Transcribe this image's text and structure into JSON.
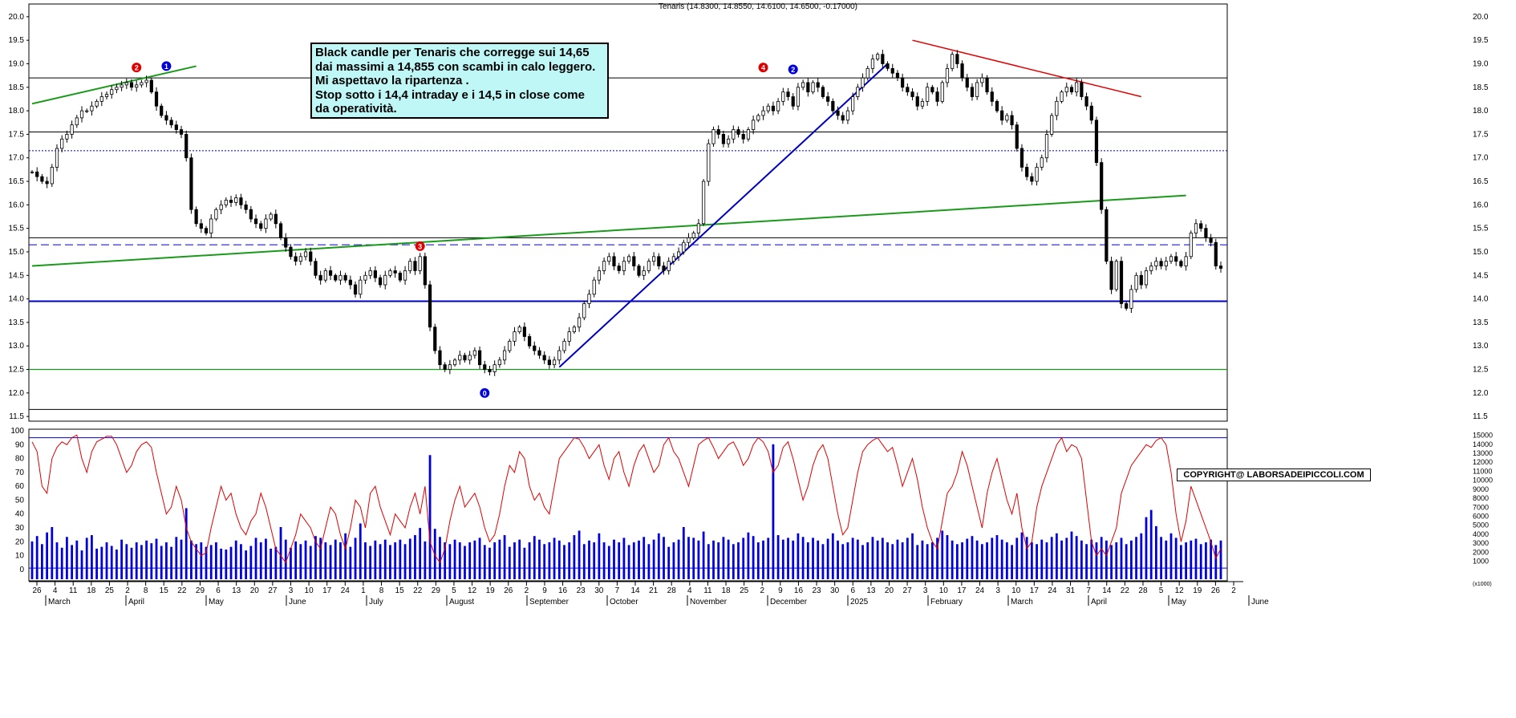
{
  "chart_data": [
    {
      "type": "candlestick",
      "title": "Tenaris (14.8300, 14.8550, 14.6100, 14.6500, -0.17000)",
      "ylim": [
        11.4,
        20.1
      ],
      "y_ticks": [
        "20.0",
        "19.5",
        "19.0",
        "18.5",
        "18.0",
        "17.5",
        "17.0",
        "16.5",
        "16.0",
        "15.5",
        "15.0",
        "14.5",
        "14.0",
        "13.5",
        "13.0",
        "12.5",
        "12.0",
        "11.5"
      ],
      "x_ticks": [
        "26",
        "4",
        "11",
        "18",
        "25",
        "2",
        "8",
        "15",
        "22",
        "29",
        "6",
        "13",
        "20",
        "27",
        "3",
        "10",
        "17",
        "24",
        "1",
        "8",
        "15",
        "22",
        "29",
        "5",
        "12",
        "19",
        "26",
        "2",
        "9",
        "16",
        "23",
        "30",
        "7",
        "14",
        "21",
        "28",
        "4",
        "11",
        "18",
        "25",
        "2",
        "9",
        "16",
        "23",
        "30",
        "6",
        "13",
        "20",
        "27",
        "3",
        "10",
        "17",
        "24",
        "3",
        "10",
        "17",
        "24",
        "31",
        "7",
        "14",
        "22",
        "28",
        "5",
        "12",
        "19",
        "26",
        "2"
      ],
      "months": [
        "March",
        "April",
        "May",
        "June",
        "July",
        "August",
        "September",
        "October",
        "November",
        "December",
        "2025",
        "February",
        "March",
        "April",
        "May",
        "June"
      ],
      "horizontal_levels": {
        "black": [
          18.7,
          17.55,
          15.3,
          11.65
        ],
        "blue": [
          13.95
        ],
        "green": [
          12.5
        ],
        "dotted_blue": [
          17.15
        ],
        "dashed_blue": [
          15.15
        ]
      },
      "trendlines": {
        "green_support": [
          [
            0,
            14.7
          ],
          [
            232,
            16.2
          ]
        ],
        "blue_uptrend": [
          [
            106,
            12.55
          ],
          [
            172,
            19.0
          ]
        ],
        "red_downtrend": [
          [
            177,
            19.5
          ],
          [
            223,
            18.3
          ]
        ],
        "green_early": [
          [
            0,
            18.15
          ],
          [
            33,
            18.95
          ]
        ]
      },
      "markers": [
        {
          "label": "2",
          "color": "#e00000",
          "x": 21,
          "y": 18.92
        },
        {
          "label": "1",
          "color": "#0000dd",
          "x": 27,
          "y": 18.95
        },
        {
          "label": "3",
          "color": "#e00000",
          "x": 78,
          "y": 15.12
        },
        {
          "label": "0",
          "color": "#0000dd",
          "x": 91,
          "y": 12.0
        },
        {
          "label": "4",
          "color": "#e00000",
          "x": 147,
          "y": 18.92
        },
        {
          "label": "2",
          "color": "#0000dd",
          "x": 153,
          "y": 18.88
        }
      ],
      "annotation": [
        "Black candle per Tenaris che corregge sui 14,65",
        "dai massimi a 14,855 con scambi in calo leggero.",
        "Mi aspettavo la ripartenza .",
        "Stop sotto i 14,4 intraday e i 14,5 in close come",
        "da operatività."
      ],
      "copyright": "COPYRIGHT@ LABORSADEIPICCOLI.COM",
      "closes": [
        16.7,
        16.6,
        16.5,
        16.45,
        16.8,
        17.2,
        17.4,
        17.5,
        17.7,
        17.85,
        18.0,
        18.0,
        18.1,
        18.2,
        18.3,
        18.35,
        18.45,
        18.5,
        18.55,
        18.6,
        18.5,
        18.55,
        18.6,
        18.65,
        18.4,
        18.1,
        17.9,
        17.8,
        17.7,
        17.6,
        17.5,
        17.0,
        15.9,
        15.6,
        15.5,
        15.4,
        15.7,
        15.9,
        16.0,
        16.1,
        16.05,
        16.15,
        16.0,
        15.9,
        15.7,
        15.6,
        15.5,
        15.7,
        15.8,
        15.6,
        15.3,
        15.1,
        14.9,
        14.8,
        14.9,
        15.0,
        14.8,
        14.5,
        14.4,
        14.6,
        14.5,
        14.4,
        14.5,
        14.4,
        14.3,
        14.1,
        14.4,
        14.5,
        14.6,
        14.45,
        14.3,
        14.5,
        14.6,
        14.55,
        14.4,
        14.6,
        14.8,
        14.6,
        14.9,
        14.3,
        13.4,
        12.9,
        12.6,
        12.5,
        12.6,
        12.7,
        12.8,
        12.7,
        12.8,
        12.9,
        12.6,
        12.5,
        12.45,
        12.6,
        12.7,
        12.9,
        13.1,
        13.3,
        13.4,
        13.2,
        13.0,
        12.9,
        12.8,
        12.7,
        12.6,
        12.7,
        12.9,
        13.1,
        13.3,
        13.4,
        13.6,
        13.9,
        14.1,
        14.4,
        14.6,
        14.8,
        14.9,
        14.7,
        14.6,
        14.8,
        14.9,
        14.7,
        14.5,
        14.6,
        14.8,
        14.9,
        14.7,
        14.6,
        14.8,
        14.9,
        15.0,
        15.2,
        15.3,
        15.4,
        15.6,
        16.5,
        17.3,
        17.6,
        17.5,
        17.3,
        17.4,
        17.6,
        17.5,
        17.4,
        17.6,
        17.8,
        17.9,
        18.0,
        18.1,
        18.0,
        18.2,
        18.4,
        18.3,
        18.1,
        18.5,
        18.6,
        18.4,
        18.6,
        18.5,
        18.3,
        18.2,
        18.0,
        17.9,
        17.8,
        18.0,
        18.3,
        18.5,
        18.7,
        18.9,
        19.1,
        19.2,
        19.0,
        18.9,
        18.8,
        18.7,
        18.5,
        18.4,
        18.3,
        18.1,
        18.2,
        18.5,
        18.4,
        18.2,
        18.6,
        18.9,
        19.2,
        19.0,
        18.7,
        18.5,
        18.3,
        18.6,
        18.7,
        18.4,
        18.2,
        18.0,
        17.8,
        17.9,
        17.7,
        17.2,
        16.8,
        16.6,
        16.5,
        16.8,
        17.0,
        17.5,
        17.9,
        18.2,
        18.4,
        18.5,
        18.4,
        18.6,
        18.3,
        18.1,
        17.8,
        16.9,
        15.9,
        14.8,
        14.2,
        14.8,
        13.9,
        13.8,
        14.2,
        14.5,
        14.3,
        14.6,
        14.7,
        14.8,
        14.7,
        14.8,
        14.9,
        14.8,
        14.7,
        14.9,
        15.4,
        15.6,
        15.5,
        15.3,
        15.2,
        14.7,
        14.65
      ]
    },
    {
      "type": "line+bar",
      "y_ticks_left": [
        "100",
        "90",
        "80",
        "70",
        "60",
        "50",
        "40",
        "30",
        "20",
        "10",
        "0"
      ],
      "y_ticks_right": [
        "15000",
        "14000",
        "13000",
        "12000",
        "11000",
        "10000",
        "9000",
        "8000",
        "7000",
        "6000",
        "5000",
        "4000",
        "3000",
        "2000",
        "1000"
      ],
      "right_unit": "(x1000)",
      "ylim_left": [
        -7,
        100
      ],
      "ylim_right": [
        -1000,
        15500
      ],
      "levels": [
        95,
        1
      ],
      "oscillator": [
        92,
        85,
        60,
        55,
        80,
        88,
        92,
        90,
        95,
        97,
        80,
        70,
        85,
        92,
        94,
        96,
        96,
        90,
        80,
        70,
        75,
        85,
        90,
        92,
        88,
        70,
        55,
        40,
        45,
        60,
        50,
        30,
        20,
        15,
        10,
        12,
        30,
        45,
        60,
        50,
        55,
        40,
        30,
        25,
        35,
        40,
        55,
        45,
        30,
        15,
        10,
        5,
        15,
        25,
        40,
        35,
        30,
        20,
        15,
        30,
        45,
        40,
        25,
        15,
        30,
        50,
        45,
        30,
        55,
        60,
        45,
        35,
        25,
        40,
        35,
        30,
        45,
        55,
        40,
        60,
        20,
        10,
        5,
        15,
        35,
        50,
        60,
        45,
        50,
        55,
        45,
        30,
        20,
        25,
        40,
        60,
        75,
        70,
        85,
        80,
        60,
        50,
        55,
        45,
        40,
        60,
        80,
        85,
        90,
        95,
        94,
        88,
        80,
        85,
        90,
        75,
        65,
        80,
        85,
        70,
        60,
        75,
        85,
        90,
        80,
        70,
        75,
        90,
        95,
        85,
        80,
        70,
        60,
        75,
        90,
        93,
        95,
        88,
        80,
        85,
        90,
        92,
        85,
        75,
        80,
        90,
        95,
        92,
        85,
        70,
        75,
        88,
        92,
        80,
        65,
        50,
        60,
        75,
        85,
        90,
        80,
        60,
        40,
        25,
        30,
        50,
        70,
        85,
        90,
        93,
        95,
        90,
        85,
        88,
        75,
        60,
        70,
        80,
        65,
        45,
        30,
        20,
        15,
        35,
        55,
        60,
        70,
        85,
        75,
        60,
        45,
        30,
        55,
        70,
        80,
        65,
        50,
        40,
        55,
        30,
        15,
        20,
        45,
        60,
        70,
        80,
        90,
        95,
        85,
        90,
        88,
        80,
        50,
        20,
        10,
        15,
        10,
        20,
        30,
        55,
        65,
        75,
        80,
        85,
        90,
        88,
        93,
        95,
        90,
        70,
        40,
        20,
        35,
        60,
        50,
        40,
        30,
        20,
        8,
        15,
        5,
        3,
        2
      ],
      "volume": [
        3200,
        3800,
        2900,
        4200,
        4800,
        3100,
        2500,
        3700,
        2800,
        3300,
        2200,
        3600,
        3900,
        2400,
        2600,
        3100,
        2700,
        2300,
        3400,
        2900,
        2500,
        3100,
        2800,
        3300,
        3000,
        3500,
        2700,
        3100,
        2600,
        3700,
        3400,
        6900,
        3300,
        2900,
        3100,
        2600,
        2800,
        3100,
        2400,
        2300,
        2600,
        3300,
        2900,
        2200,
        2700,
        3600,
        3100,
        3500,
        2400,
        2600,
        4800,
        3400,
        2500,
        3200,
        2900,
        3300,
        2700,
        3800,
        3600,
        3100,
        2800,
        3400,
        3100,
        4100,
        2600,
        3600,
        5200,
        3100,
        2700,
        3300,
        2900,
        3400,
        2800,
        3100,
        3400,
        2900,
        3500,
        3900,
        4700,
        3200,
        12800,
        4600,
        3700,
        3100,
        2900,
        3400,
        3100,
        2700,
        3100,
        3300,
        3600,
        2800,
        2500,
        3100,
        3400,
        3900,
        2600,
        3100,
        3400,
        2500,
        3100,
        3800,
        3400,
        2900,
        3100,
        3600,
        3300,
        2800,
        3100,
        3900,
        4400,
        2900,
        3300,
        3100,
        4100,
        3100,
        2700,
        3400,
        3100,
        3600,
        2800,
        3100,
        3300,
        3700,
        2900,
        3400,
        4100,
        3700,
        2600,
        3100,
        3400,
        4800,
        3700,
        3600,
        3300,
        4300,
        2900,
        3300,
        3100,
        3700,
        3400,
        2900,
        3100,
        3600,
        4200,
        3800,
        3100,
        3300,
        3600,
        14000,
        3900,
        3400,
        3600,
        3300,
        4100,
        3700,
        3100,
        3600,
        3300,
        2900,
        3500,
        4100,
        3300,
        2900,
        3100,
        3600,
        3400,
        2800,
        3100,
        3700,
        3300,
        3600,
        3100,
        2900,
        3400,
        3100,
        3600,
        4100,
        2800,
        3300,
        2900,
        3100,
        3600,
        4400,
        3900,
        3300,
        2900,
        3100,
        3500,
        3800,
        3300,
        2900,
        3100,
        3600,
        3900,
        3400,
        3100,
        2800,
        3600,
        4200,
        3700,
        3100,
        2900,
        3400,
        3100,
        3700,
        4100,
        3300,
        3600,
        4300,
        3800,
        3300,
        2900,
        3400,
        3100,
        3700,
        3300,
        2800,
        3100,
        3600,
        2900,
        3300,
        3700,
        4100,
        5900,
        6700,
        4900,
        3700,
        3300,
        4100,
        3600,
        2800,
        3100,
        3300,
        3500,
        2900,
        3100,
        3400,
        2800,
        3300,
        2600,
        3100,
        3300,
        2900,
        2100,
        2400,
        2200
      ]
    }
  ],
  "colors": {
    "candle": "#000000",
    "grid": "#000000",
    "blue_level": "#0000c0",
    "green": "#1a9a1a",
    "red": "#e00000",
    "oscillator": "#e00000",
    "volume": "#0000dd",
    "annotation_bg": "#bff7f7"
  }
}
